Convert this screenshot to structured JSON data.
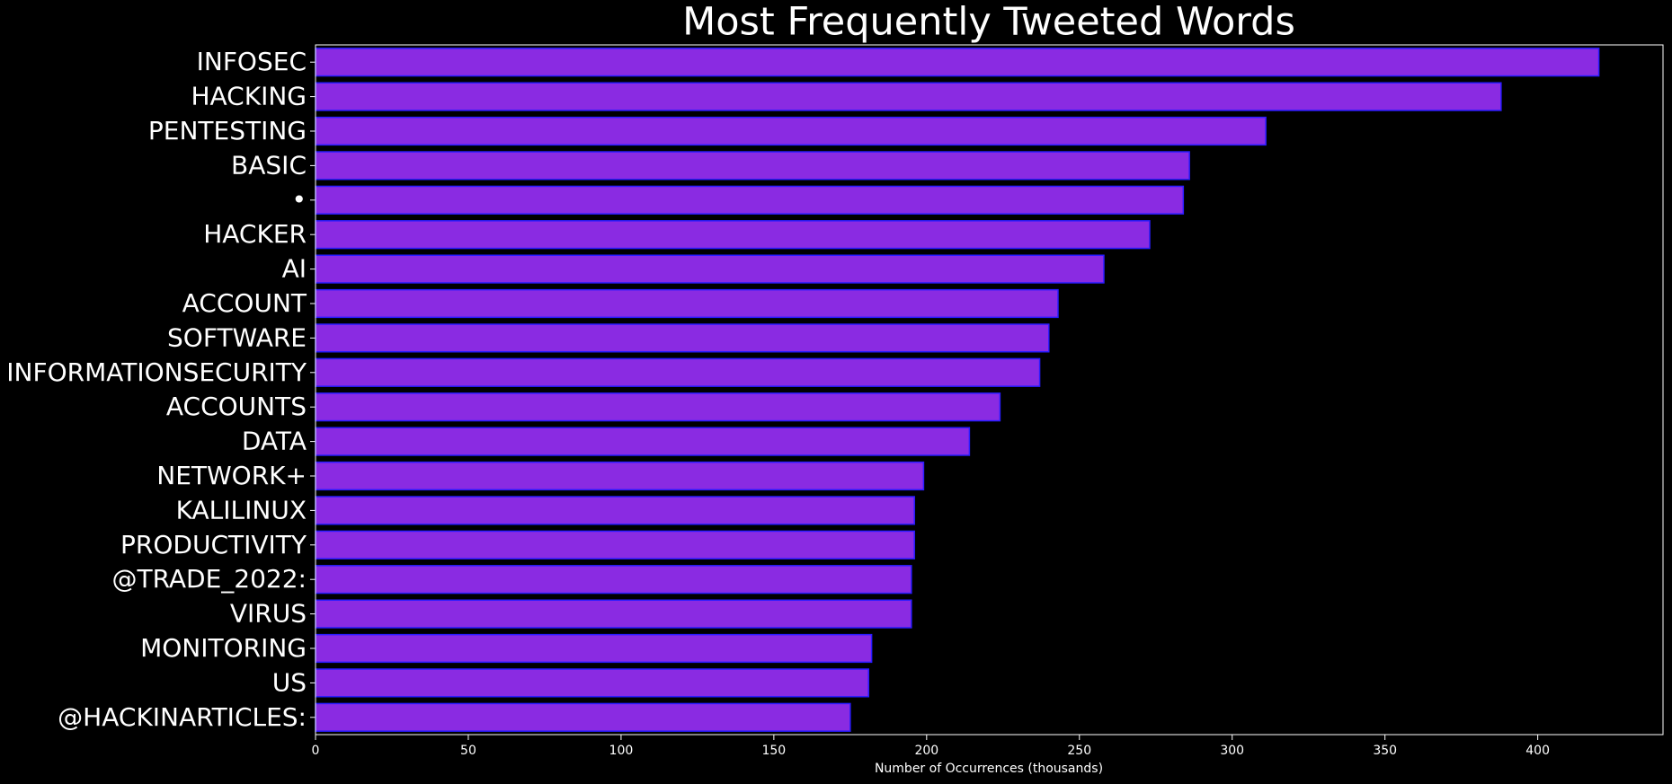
{
  "chart_data": {
    "type": "barh",
    "title": "Most Frequently Tweeted Words",
    "xlabel": "Number of Occurrences (thousands)",
    "categories": [
      "INFOSEC",
      "HACKING",
      "PENTESTING",
      "BASIC",
      "•",
      "HACKER",
      "AI",
      "ACCOUNT",
      "SOFTWARE",
      "INFORMATIONSECURITY",
      "ACCOUNTS",
      "DATA",
      "NETWORK+",
      "KALILINUX",
      "PRODUCTIVITY",
      "@TRADE_2022:",
      "VIRUS",
      "MONITORING",
      "US",
      "@HACKINARTICLES:"
    ],
    "values": [
      420,
      388,
      311,
      286,
      284,
      273,
      258,
      243,
      240,
      237,
      224,
      214,
      199,
      196,
      196,
      195,
      195,
      182,
      181,
      175
    ],
    "color": "#8a2be2",
    "edgecolor": "#2a1cff",
    "xlim": [
      0,
      441
    ],
    "xticks": [
      0,
      50,
      100,
      150,
      200,
      250,
      300,
      350,
      400
    ]
  }
}
